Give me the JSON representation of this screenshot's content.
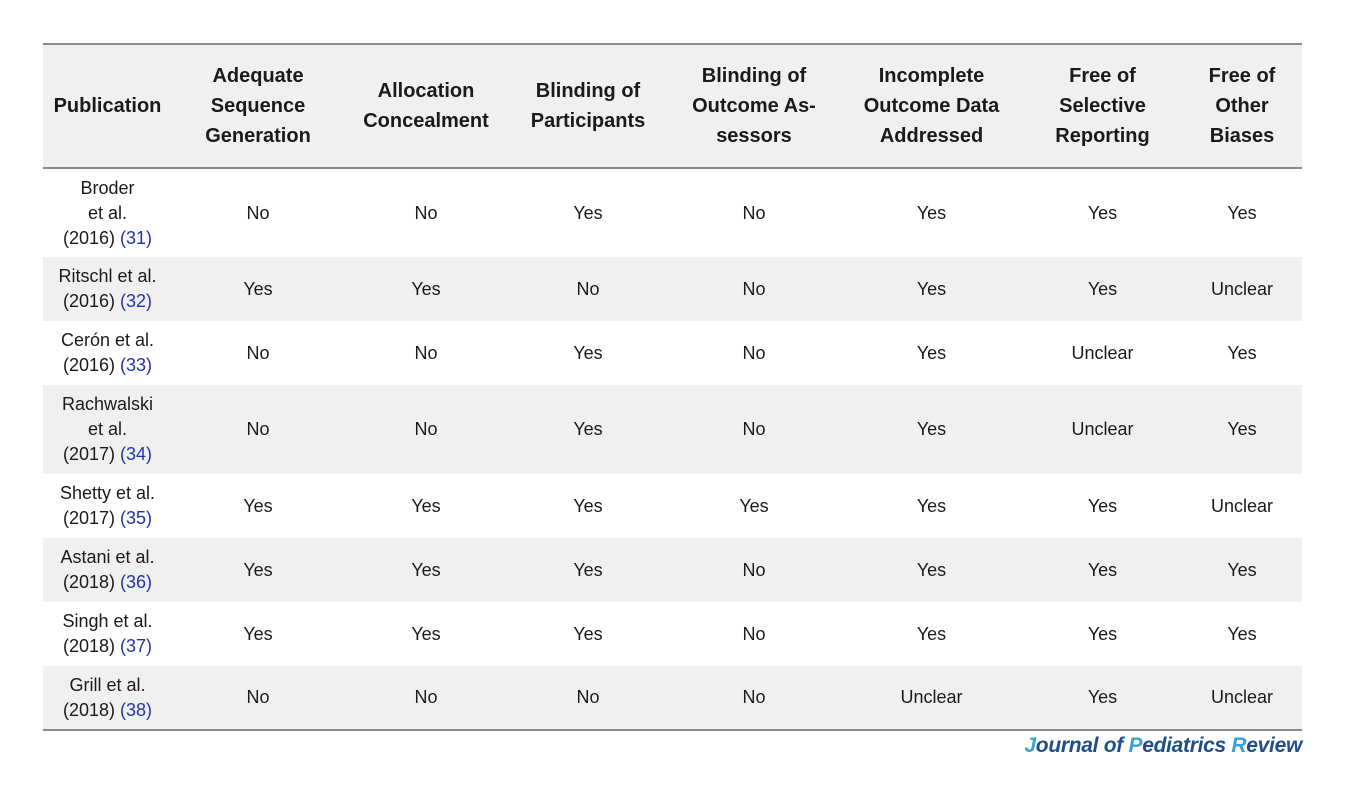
{
  "table": {
    "headers": [
      "Publication",
      "Adequate\nSequence\nGeneration",
      "Allocation\nConcealment",
      "Blinding of\nParticipants",
      "Blinding of\nOutcome As-\nsessors",
      "Incomplete\nOutcome Data\nAddressed",
      "Free of\nSelective\nReporting",
      "Free of\nOther\nBiases"
    ],
    "rows": [
      {
        "pub": "Broder\net al.\n(2016) ",
        "ref": "(31)",
        "cells": [
          "No",
          "No",
          "Yes",
          "No",
          "Yes",
          "Yes",
          "Yes"
        ]
      },
      {
        "pub": "Ritschl et al.\n(2016) ",
        "ref": "(32)",
        "cells": [
          "Yes",
          "Yes",
          "No",
          "No",
          "Yes",
          "Yes",
          "Unclear"
        ]
      },
      {
        "pub": "Cerón et al.\n(2016) ",
        "ref": "(33)",
        "cells": [
          "No",
          "No",
          "Yes",
          "No",
          "Yes",
          "Unclear",
          "Yes"
        ]
      },
      {
        "pub": "Rachwalski\net al.\n(2017) ",
        "ref": "(34)",
        "cells": [
          "No",
          "No",
          "Yes",
          "No",
          "Yes",
          "Unclear",
          "Yes"
        ]
      },
      {
        "pub": "Shetty et al.\n(2017) ",
        "ref": "(35)",
        "cells": [
          "Yes",
          "Yes",
          "Yes",
          "Yes",
          "Yes",
          "Yes",
          "Unclear"
        ]
      },
      {
        "pub": "Astani et al.\n(2018) ",
        "ref": "(36)",
        "cells": [
          "Yes",
          "Yes",
          "Yes",
          "No",
          "Yes",
          "Yes",
          "Yes"
        ]
      },
      {
        "pub": "Singh et al.\n(2018) ",
        "ref": "(37)",
        "cells": [
          "Yes",
          "Yes",
          "Yes",
          "No",
          "Yes",
          "Yes",
          "Yes"
        ]
      },
      {
        "pub": "Grill et al.\n(2018) ",
        "ref": "(38)",
        "cells": [
          "No",
          "No",
          "No",
          "No",
          "Unclear",
          "Yes",
          "Unclear"
        ]
      }
    ]
  },
  "footer": {
    "journal_parts": [
      "J",
      "ournal of ",
      "P",
      "ediatrics ",
      "R",
      "eview"
    ]
  }
}
